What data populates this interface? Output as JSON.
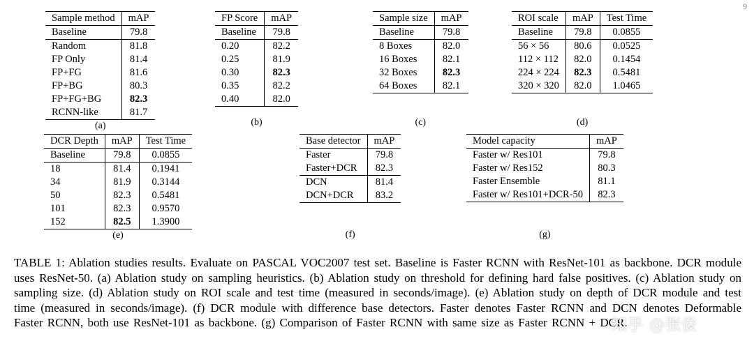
{
  "page": {
    "number": "9",
    "watermark": "知乎 @张俊"
  },
  "caption": "TABLE 1: Ablation studies results. Evaluate on PASCAL VOC2007 test set. Baseline is Faster RCNN with ResNet-101 as backbone. DCR module uses ResNet-50. (a) Ablation study on sampling heuristics. (b) Ablation study on threshold for defining hard false positives. (c) Ablation study on sampling size. (d) Ablation study on ROI scale and test time (measured in seconds/image). (e) Ablation study on depth of DCR module and test time (measured in seconds/image). (f) DCR module with difference base detectors. Faster denotes Faster RCNN and DCN denotes Deformable Faster RCNN, both use ResNet-101 as backbone. (g) Comparison of Faster RCNN with same size as Faster RCNN + DCR.",
  "tables": [
    {
      "id": "a",
      "label": "(a)",
      "columns": [
        "Sample method",
        "mAP"
      ],
      "rows": [
        {
          "cells": [
            "Baseline",
            "79.8"
          ],
          "rule_after": true
        },
        {
          "cells": [
            "Random",
            "81.8"
          ]
        },
        {
          "cells": [
            "FP Only",
            "81.4"
          ]
        },
        {
          "cells": [
            "FP+FG",
            "81.6"
          ]
        },
        {
          "cells": [
            "FP+BG",
            "80.3"
          ]
        },
        {
          "cells": [
            "FP+FG+BG",
            "82.3"
          ],
          "bold": [
            1
          ]
        },
        {
          "cells": [
            "RCNN-like",
            "81.7"
          ]
        }
      ]
    },
    {
      "id": "b",
      "label": "(b)",
      "columns": [
        "FP Score",
        "mAP"
      ],
      "rows": [
        {
          "cells": [
            "Baseline",
            "79.8"
          ],
          "rule_after": true
        },
        {
          "cells": [
            "0.20",
            "82.2"
          ]
        },
        {
          "cells": [
            "0.25",
            "81.9"
          ]
        },
        {
          "cells": [
            "0.30",
            "82.3"
          ],
          "bold": [
            1
          ]
        },
        {
          "cells": [
            "0.35",
            "82.2"
          ]
        },
        {
          "cells": [
            "0.40",
            "82.0"
          ]
        }
      ]
    },
    {
      "id": "c",
      "label": "(c)",
      "columns": [
        "Sample size",
        "mAP"
      ],
      "rows": [
        {
          "cells": [
            "Baseline",
            "79.8"
          ],
          "rule_after": true
        },
        {
          "cells": [
            "8 Boxes",
            "82.0"
          ]
        },
        {
          "cells": [
            "16 Boxes",
            "82.1"
          ]
        },
        {
          "cells": [
            "32 Boxes",
            "82.3"
          ],
          "bold": [
            1
          ]
        },
        {
          "cells": [
            "64 Boxes",
            "82.1"
          ]
        }
      ]
    },
    {
      "id": "d",
      "label": "(d)",
      "columns": [
        "ROI scale",
        "mAP",
        "Test Time"
      ],
      "rows": [
        {
          "cells": [
            "Baseline",
            "79.8",
            "0.0855"
          ],
          "rule_after": true
        },
        {
          "cells": [
            "56 × 56",
            "80.6",
            "0.0525"
          ]
        },
        {
          "cells": [
            "112 × 112",
            "82.0",
            "0.1454"
          ]
        },
        {
          "cells": [
            "224 × 224",
            "82.3",
            "0.5481"
          ],
          "bold": [
            1
          ]
        },
        {
          "cells": [
            "320 × 320",
            "82.0",
            "1.0465"
          ]
        }
      ]
    },
    {
      "id": "e",
      "label": "(e)",
      "columns": [
        "DCR Depth",
        "mAP",
        "Test Time"
      ],
      "rows": [
        {
          "cells": [
            "Baseline",
            "79.8",
            "0.0855"
          ],
          "rule_after": true
        },
        {
          "cells": [
            "18",
            "81.4",
            "0.1941"
          ]
        },
        {
          "cells": [
            "34",
            "81.9",
            "0.3144"
          ]
        },
        {
          "cells": [
            "50",
            "82.3",
            "0.5481"
          ]
        },
        {
          "cells": [
            "101",
            "82.3",
            "0.9570"
          ]
        },
        {
          "cells": [
            "152",
            "82.5",
            "1.3900"
          ],
          "bold": [
            1
          ]
        }
      ]
    },
    {
      "id": "f",
      "label": "(f)",
      "columns": [
        "Base detector",
        "mAP"
      ],
      "rows": [
        {
          "cells": [
            "Faster",
            "79.8"
          ]
        },
        {
          "cells": [
            "Faster+DCR",
            "82.3"
          ],
          "rule_after": true
        },
        {
          "cells": [
            "DCN",
            "81.4"
          ]
        },
        {
          "cells": [
            "DCN+DCR",
            "83.2"
          ]
        }
      ]
    },
    {
      "id": "g",
      "label": "(g)",
      "columns": [
        "Model capacity",
        "mAP"
      ],
      "rows": [
        {
          "cells": [
            "Faster w/ Res101",
            "79.8"
          ]
        },
        {
          "cells": [
            "Faster w/ Res152",
            "80.3"
          ]
        },
        {
          "cells": [
            "Faster Ensemble",
            "81.1"
          ]
        },
        {
          "cells": [
            "Faster w/ Res101+DCR-50",
            "82.3"
          ]
        }
      ]
    }
  ]
}
